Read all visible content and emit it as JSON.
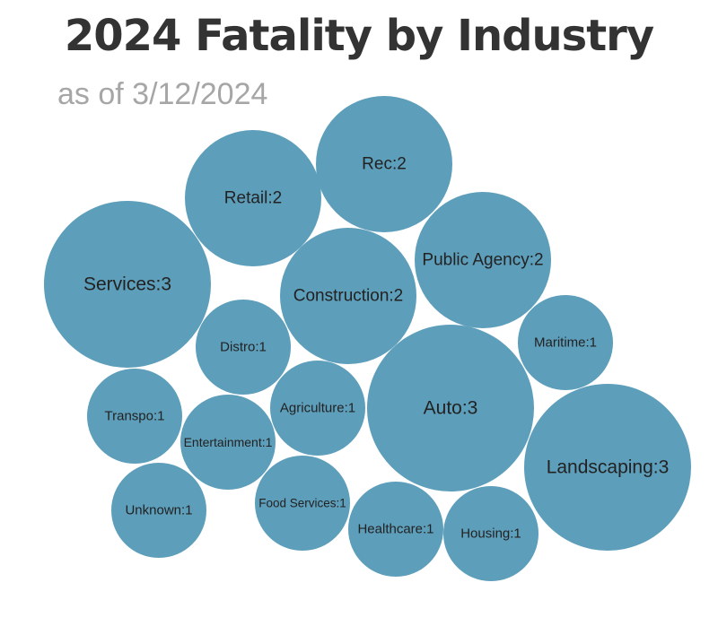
{
  "chart_data": {
    "type": "bubble",
    "title": "2024 Fatality by Industry",
    "subtitle": "as of 3/12/2024",
    "bubble_color": "#5d9ebb",
    "items": [
      {
        "name": "Rec",
        "value": 2,
        "label": "Rec:2"
      },
      {
        "name": "Retail",
        "value": 2,
        "label": "Retail:2"
      },
      {
        "name": "Public Agency",
        "value": 2,
        "label": "Public Agency:2"
      },
      {
        "name": "Services",
        "value": 3,
        "label": "Services:3"
      },
      {
        "name": "Construction",
        "value": 2,
        "label": "Construction:2"
      },
      {
        "name": "Maritime",
        "value": 1,
        "label": "Maritime:1"
      },
      {
        "name": "Distro",
        "value": 1,
        "label": "Distro:1"
      },
      {
        "name": "Auto",
        "value": 3,
        "label": "Auto:3"
      },
      {
        "name": "Agriculture",
        "value": 1,
        "label": "Agriculture:1"
      },
      {
        "name": "Transpo",
        "value": 1,
        "label": "Transpo:1"
      },
      {
        "name": "Entertainment",
        "value": 1,
        "label": "Entertainment:1"
      },
      {
        "name": "Landscaping",
        "value": 3,
        "label": "Landscaping:3"
      },
      {
        "name": "Unknown",
        "value": 1,
        "label": "Unknown:1"
      },
      {
        "name": "Food Services",
        "value": 1,
        "label": "Food Services:1"
      },
      {
        "name": "Healthcare",
        "value": 1,
        "label": "Healthcare:1"
      },
      {
        "name": "Housing",
        "value": 1,
        "label": "Housing:1"
      }
    ]
  }
}
